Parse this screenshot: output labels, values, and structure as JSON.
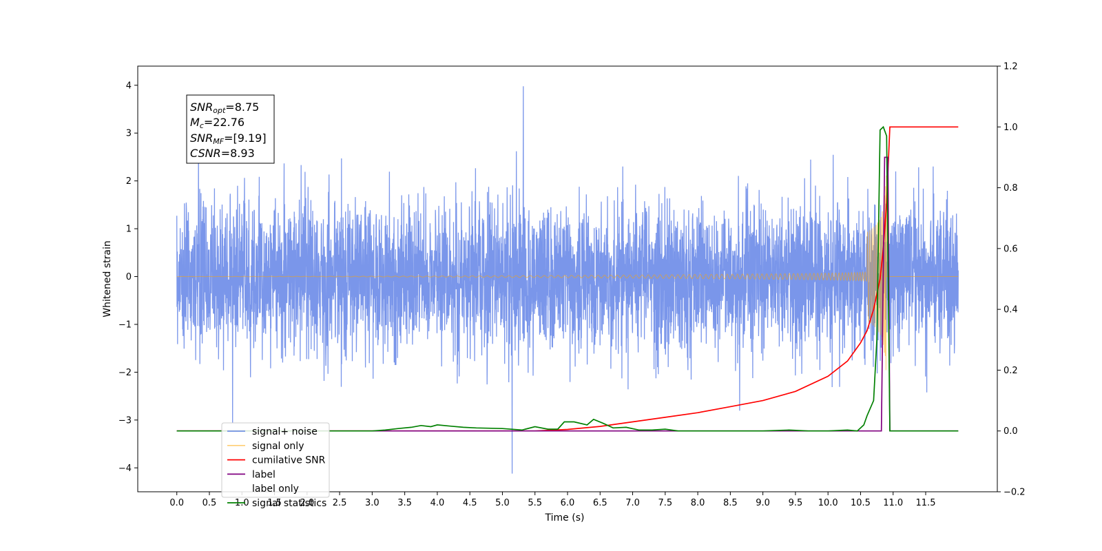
{
  "chart_data": {
    "type": "line",
    "xlabel": "Time (s)",
    "ylabel": "Whitened strain",
    "ylabel_right": "",
    "xlim": [
      -0.6,
      12.6
    ],
    "ylim": [
      -4.5,
      4.4
    ],
    "ylim_right": [
      -0.2,
      1.2
    ],
    "x_ticks": [
      0.0,
      0.5,
      1.0,
      1.5,
      2.0,
      2.5,
      3.0,
      3.5,
      4.0,
      4.5,
      5.0,
      5.5,
      6.0,
      6.5,
      7.0,
      7.5,
      8.0,
      8.5,
      9.0,
      9.5,
      10.0,
      10.5,
      11.0,
      11.5
    ],
    "x_tick_labels": [
      "0.0",
      "0.5",
      "1.0",
      "1.5",
      "2.0",
      "2.5",
      "3.0",
      "3.5",
      "4.0",
      "4.5",
      "5.0",
      "5.5",
      "6.0",
      "6.5",
      "7.0",
      "7.5",
      "8.0",
      "8.5",
      "9.0",
      "9.5",
      "10.0",
      "10.5",
      "11.0",
      "11.5"
    ],
    "y_ticks": [
      -4,
      -3,
      -2,
      -1,
      0,
      1,
      2,
      3,
      4
    ],
    "y_tick_labels": [
      "−4",
      "−3",
      "−2",
      "−1",
      "0",
      "1",
      "2",
      "3",
      "4"
    ],
    "y_ticks_right": [
      -0.2,
      0.0,
      0.2,
      0.4,
      0.6,
      0.8,
      1.0,
      1.2
    ],
    "y_tick_labels_right": [
      "−0.2",
      "0.0",
      "0.2",
      "0.4",
      "0.6",
      "0.8",
      "1.0",
      "1.2"
    ],
    "annotation": {
      "snr_opt": {
        "main": "SNR",
        "sub": "opt",
        "value": "=8.75"
      },
      "mc": {
        "main": "M",
        "sub": "c",
        "value": "=22.76"
      },
      "snr_mf": {
        "main": "SNR",
        "sub": "MF",
        "value": "=[9.19]"
      },
      "csnr": {
        "main": "CSNR",
        "value": "=8.93"
      }
    },
    "legend_position": "lower-left",
    "series": [
      {
        "name": "signal+ noise",
        "axis": "left",
        "color": "#4169e1",
        "description_values": {
          "x_range": [
            0.0,
            12.0
          ],
          "typical_amplitude": 1.7,
          "max": 3.98,
          "min": -4.12
        }
      },
      {
        "name": "signal only",
        "axis": "left",
        "color": "#ffa500",
        "description_values": {
          "x_range": [
            0.0,
            12.0
          ],
          "peak_time": 10.9,
          "peak_amplitude": 2.4
        }
      },
      {
        "name": "cumilative SNR",
        "axis": "right",
        "color": "#ff0000",
        "x": [
          0.0,
          5.5,
          6.0,
          6.5,
          7.0,
          7.5,
          8.0,
          8.5,
          9.0,
          9.5,
          10.0,
          10.3,
          10.5,
          10.6,
          10.7,
          10.8,
          10.85,
          10.9,
          10.95,
          12.0
        ],
        "y": [
          0.0,
          0.0,
          0.005,
          0.015,
          0.03,
          0.045,
          0.06,
          0.08,
          0.1,
          0.13,
          0.18,
          0.23,
          0.29,
          0.33,
          0.4,
          0.5,
          0.6,
          0.75,
          1.0,
          1.0
        ]
      },
      {
        "name": "label",
        "axis": "right",
        "color": "#800080",
        "x": [
          0.0,
          10.82,
          10.87,
          10.92,
          10.95,
          12.0
        ],
        "y": [
          0.0,
          0.0,
          0.9,
          0.9,
          0.0,
          0.0
        ]
      },
      {
        "name": "label only",
        "axis": "right",
        "color": "#ffffff",
        "x": [],
        "y": []
      },
      {
        "name": "signal statistics",
        "axis": "right",
        "color": "#008000",
        "x": [
          0.0,
          3.0,
          3.2,
          3.4,
          3.6,
          3.75,
          3.9,
          4.0,
          4.2,
          4.4,
          4.6,
          5.0,
          5.3,
          5.5,
          5.7,
          5.85,
          5.95,
          6.1,
          6.3,
          6.4,
          6.55,
          6.7,
          6.9,
          7.1,
          7.3,
          7.5,
          7.7,
          8.0,
          9.0,
          9.4,
          9.7,
          10.0,
          10.3,
          10.45,
          10.55,
          10.6,
          10.7,
          10.75,
          10.8,
          10.85,
          10.9,
          10.95,
          12.0
        ],
        "y": [
          0.0,
          0.0,
          0.003,
          0.008,
          0.012,
          0.018,
          0.014,
          0.02,
          0.016,
          0.012,
          0.01,
          0.008,
          0.003,
          0.014,
          0.006,
          0.006,
          0.03,
          0.03,
          0.02,
          0.038,
          0.025,
          0.01,
          0.012,
          0.003,
          0.003,
          0.006,
          0.0,
          0.0,
          0.0,
          0.003,
          0.0,
          0.0,
          0.003,
          0.0,
          0.02,
          0.05,
          0.1,
          0.3,
          0.99,
          1.0,
          0.97,
          0.0,
          0.0
        ]
      }
    ]
  }
}
